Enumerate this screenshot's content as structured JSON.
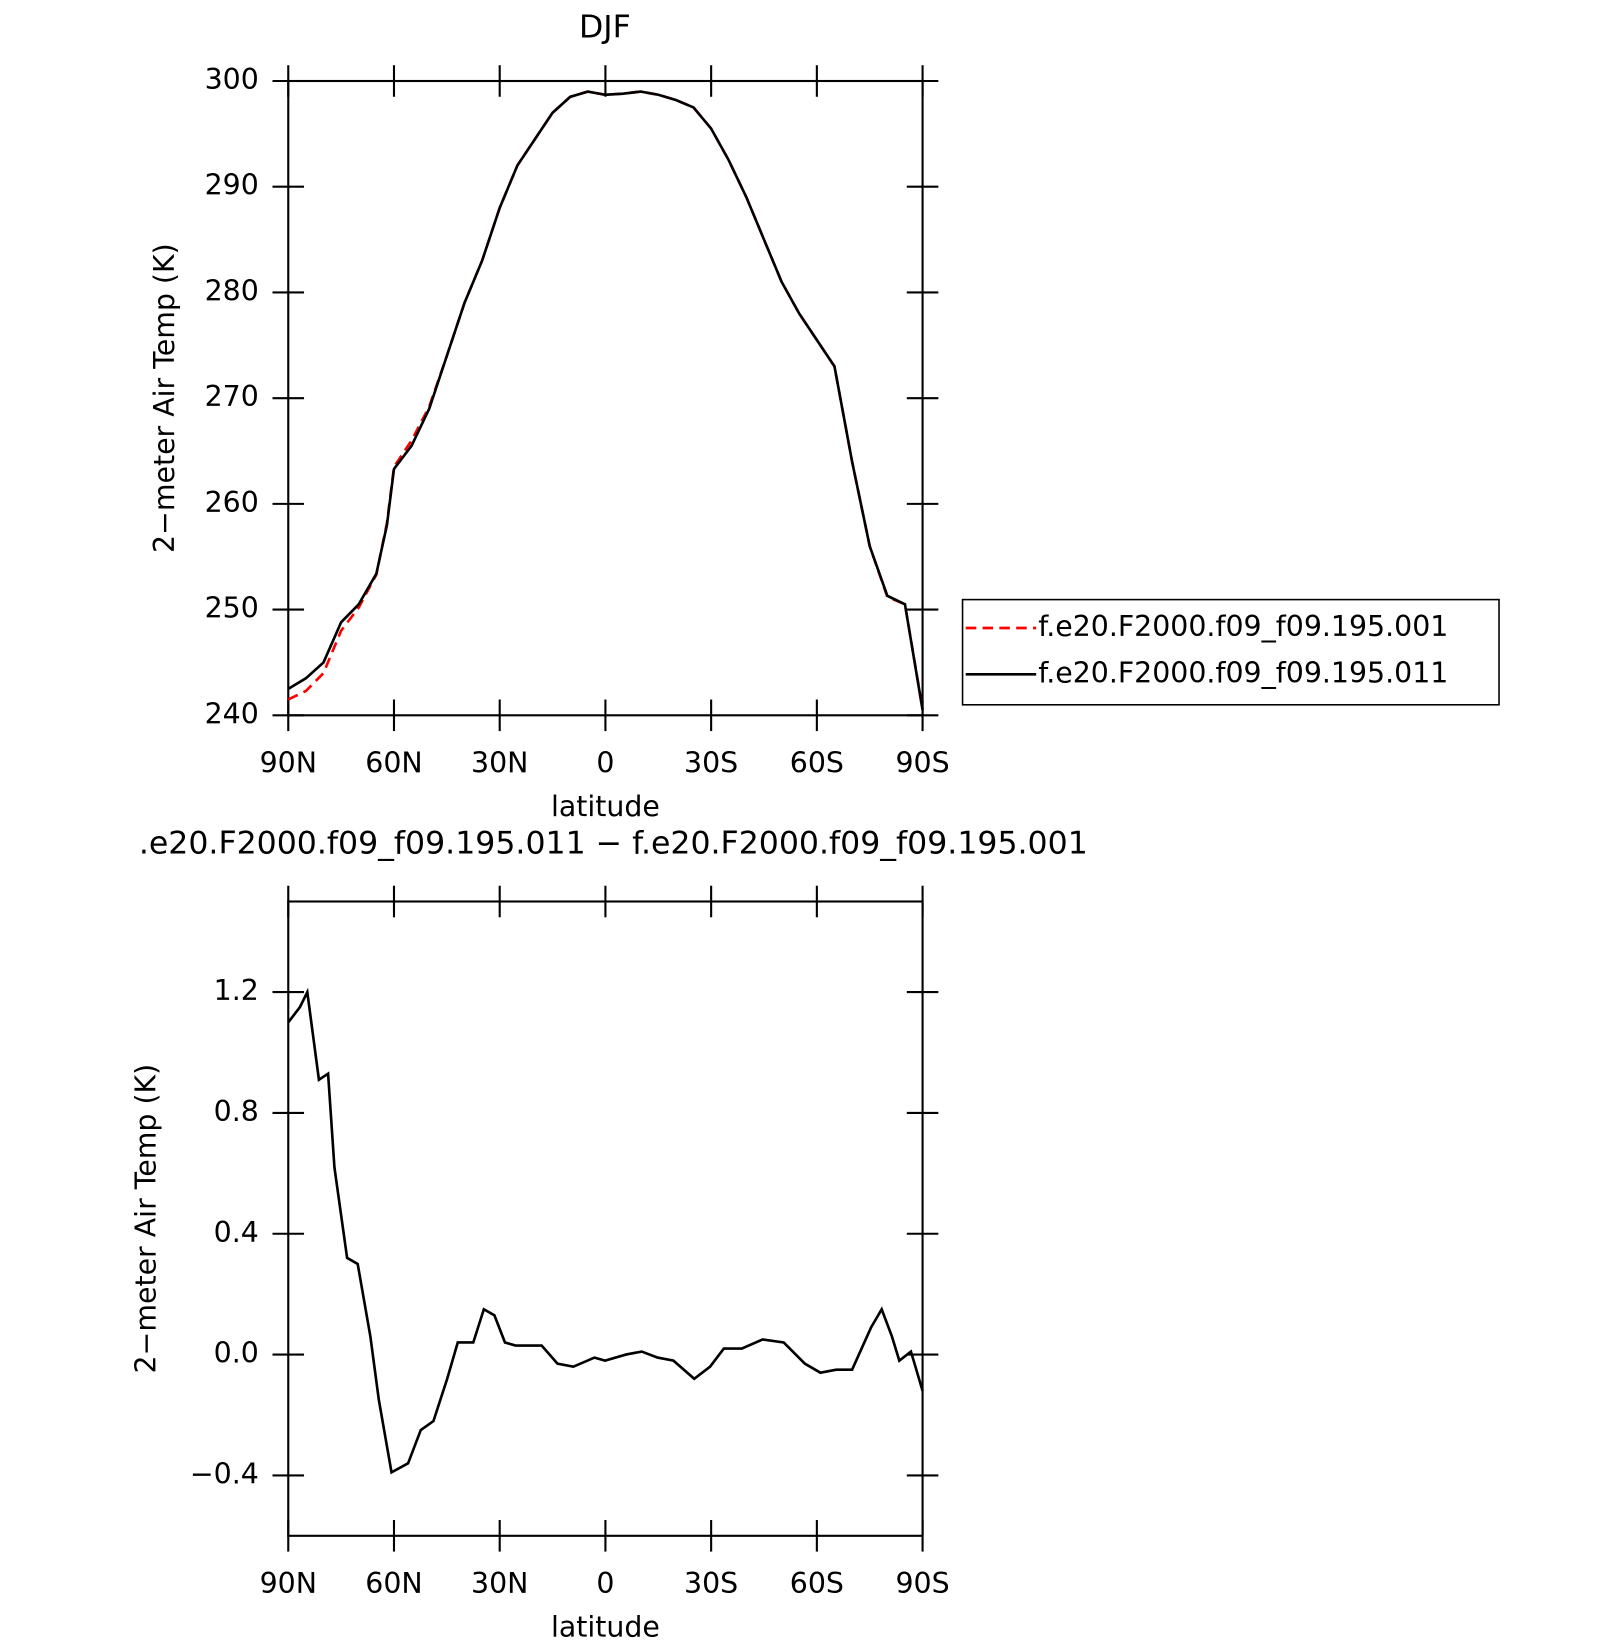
{
  "chart_data": [
    {
      "type": "line",
      "title": "DJF",
      "xlabel": "latitude",
      "ylabel": "2−meter Air Temp (K)",
      "x": [
        90,
        85,
        80,
        75,
        70,
        65,
        62,
        60,
        55,
        50,
        45,
        40,
        35,
        30,
        25,
        20,
        15,
        10,
        5,
        0,
        -5,
        -10,
        -15,
        -20,
        -25,
        -30,
        -35,
        -40,
        -45,
        -50,
        -55,
        -60,
        -65,
        -70,
        -75,
        -80,
        -85,
        -90
      ],
      "series": [
        {
          "name": "f.e20.F2000.f09_f09.195.001",
          "color": "#ff0000",
          "line_style": "dashed",
          "values": [
            241.5,
            242.3,
            244,
            248,
            250.2,
            253.3,
            258.2,
            263.5,
            266,
            269.2,
            274,
            279,
            283,
            288,
            292,
            294.5,
            297,
            298.5,
            299,
            298.7,
            298.8,
            299,
            298.7,
            298.2,
            297.5,
            295.5,
            292.5,
            289,
            285,
            281,
            278,
            275.5,
            273,
            264,
            256,
            251.2,
            250.5,
            240.6
          ]
        },
        {
          "name": "f.e20.F2000.f09_f09.195.011",
          "color": "#000000",
          "line_style": "solid",
          "values": [
            242.5,
            243.5,
            245,
            248.8,
            250.5,
            253.4,
            258,
            263.3,
            265.5,
            269,
            274,
            279,
            283,
            288,
            292,
            294.5,
            297,
            298.5,
            299,
            298.7,
            298.8,
            299,
            298.7,
            298.2,
            297.5,
            295.5,
            292.5,
            289,
            285,
            281,
            278,
            275.5,
            273,
            264,
            256,
            251.3,
            250.5,
            240.5
          ]
        }
      ],
      "xlim": [
        90,
        -90
      ],
      "xticks": [
        {
          "value": 90,
          "label": "90N"
        },
        {
          "value": 60,
          "label": "60N"
        },
        {
          "value": 30,
          "label": "30N"
        },
        0,
        {
          "value": -30,
          "label": "30S"
        },
        {
          "value": -60,
          "label": "60S"
        },
        {
          "value": -90,
          "label": "90S"
        }
      ],
      "ylim": [
        240,
        300
      ],
      "yticks": [
        240,
        250,
        260,
        270,
        280,
        290,
        300
      ],
      "legend": "right"
    },
    {
      "type": "line",
      "title": ".e20.F2000.f09_f09.195.011 − f.e20.F2000.f09_f09.195.001",
      "xlabel": "latitude",
      "ylabel": "2−meter Air Temp (K)",
      "x": [
        90,
        86.7,
        84.6,
        81.3,
        78.7,
        76.9,
        73.3,
        70.3,
        66.7,
        64.3,
        60.7,
        56,
        52.4,
        48.8,
        44.9,
        41.9,
        37.5,
        34.5,
        31.5,
        28.5,
        25.5,
        18.1,
        13.6,
        9.1,
        3.1,
        0.1,
        -5.8,
        -10.3,
        -14.8,
        -19.3,
        -25.2,
        -29.7,
        -33.6,
        -38.7,
        -44.6,
        -50.6,
        -56.6,
        -61,
        -65.5,
        -70,
        -75.4,
        -78.4,
        -81.3,
        -83.4,
        -86.7,
        -90
      ],
      "series": [
        {
          "name": "f.e20.F2000.f09_f09.195.011 − f.e20.F2000.f09_f09.195.001",
          "color": "#000000",
          "line_style": "solid",
          "values": [
            1.1,
            1.15,
            1.2,
            0.91,
            0.93,
            0.62,
            0.32,
            0.3,
            0.06,
            -0.15,
            -0.39,
            -0.36,
            -0.25,
            -0.22,
            -0.08,
            0.04,
            0.04,
            0.15,
            0.13,
            0.04,
            0.03,
            0.03,
            -0.03,
            -0.04,
            -0.01,
            -0.02,
            0,
            0.01,
            -0.01,
            -0.02,
            -0.08,
            -0.04,
            0.02,
            0.02,
            0.05,
            0.04,
            -0.03,
            -0.06,
            -0.05,
            -0.05,
            0.09,
            0.15,
            0.06,
            -0.02,
            0.01,
            -0.12
          ]
        }
      ],
      "xlim": [
        90,
        -90
      ],
      "xticks": [
        {
          "value": 90,
          "label": "90N"
        },
        {
          "value": 60,
          "label": "60N"
        },
        {
          "value": 30,
          "label": "30N"
        },
        0,
        {
          "value": -30,
          "label": "30S"
        },
        {
          "value": -60,
          "label": "60S"
        },
        {
          "value": -90,
          "label": "90S"
        }
      ],
      "ylim": [
        -0.6,
        1.5
      ],
      "yticks": [
        {
          "value": -0.4,
          "label": "−0.4"
        },
        {
          "value": 0,
          "label": "0.0"
        },
        0.4,
        0.8,
        1.2
      ]
    }
  ]
}
